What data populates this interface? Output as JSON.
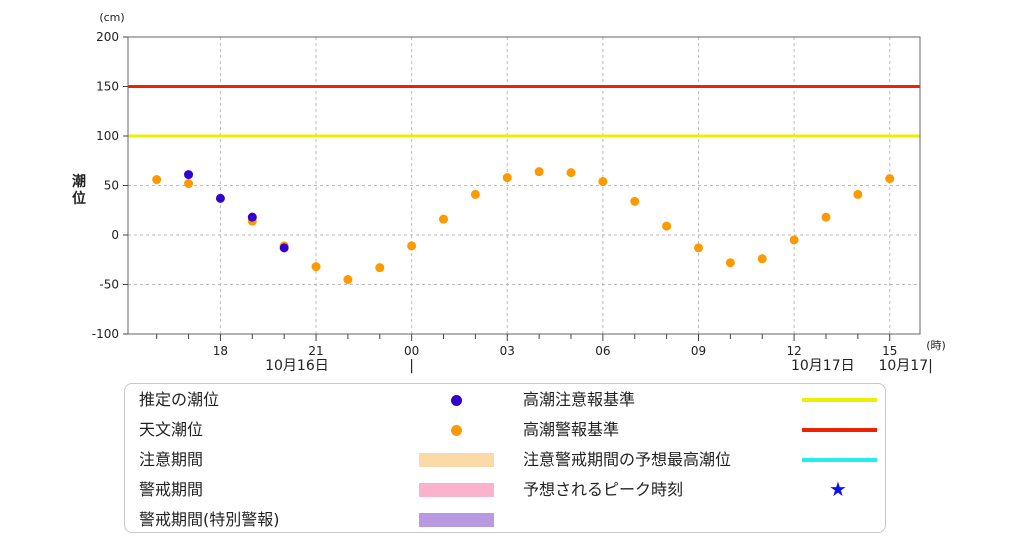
{
  "chart_data": {
    "type": "scatter",
    "ylabel": "潮位",
    "y_unit": "(cm)",
    "x_unit": "(時)",
    "ylim": [
      -100,
      200
    ],
    "y_ticks": [
      -100,
      -50,
      0,
      50,
      100,
      150,
      200
    ],
    "x_ticks": [
      {
        "h": 18,
        "label": "18"
      },
      {
        "h": 21,
        "label": "21"
      },
      {
        "h": 24,
        "label": "00"
      },
      {
        "h": 27,
        "label": "03"
      },
      {
        "h": 30,
        "label": "06"
      },
      {
        "h": 33,
        "label": "09"
      },
      {
        "h": 36,
        "label": "12"
      },
      {
        "h": 39,
        "label": "15"
      }
    ],
    "date_labels": [
      {
        "h": 20.4,
        "label": "10月16日"
      },
      {
        "h": 36.9,
        "label": "10月17日"
      },
      {
        "h": 39.5,
        "label": "10月17|"
      }
    ],
    "midnight_marker": "|",
    "grid": true,
    "reference_lines": [
      {
        "name": "高潮警報基準",
        "value": 150,
        "color": "#ee2200"
      },
      {
        "name": "高潮注意報基準",
        "value": 100,
        "color": "#eeee00"
      }
    ],
    "series": [
      {
        "name": "天文潮位",
        "color": "#ff9900",
        "points": [
          {
            "h": 16,
            "v": 56
          },
          {
            "h": 17,
            "v": 52
          },
          {
            "h": 19,
            "v": 14
          },
          {
            "h": 20,
            "v": -11
          },
          {
            "h": 21,
            "v": -32
          },
          {
            "h": 22,
            "v": -45
          },
          {
            "h": 23,
            "v": -33
          },
          {
            "h": 24,
            "v": -11
          },
          {
            "h": 25,
            "v": 16
          },
          {
            "h": 26,
            "v": 41
          },
          {
            "h": 27,
            "v": 58
          },
          {
            "h": 28,
            "v": 64
          },
          {
            "h": 29,
            "v": 63
          },
          {
            "h": 30,
            "v": 54
          },
          {
            "h": 31,
            "v": 34
          },
          {
            "h": 32,
            "v": 9
          },
          {
            "h": 33,
            "v": -13
          },
          {
            "h": 34,
            "v": -28
          },
          {
            "h": 35,
            "v": -24
          },
          {
            "h": 36,
            "v": -5
          },
          {
            "h": 37,
            "v": 18
          },
          {
            "h": 38,
            "v": 41
          },
          {
            "h": 39,
            "v": 57
          }
        ]
      },
      {
        "name": "推定の潮位",
        "color": "#3300cc",
        "points": [
          {
            "h": 17,
            "v": 61
          },
          {
            "h": 18,
            "v": 37
          },
          {
            "h": 19,
            "v": 18
          },
          {
            "h": 20,
            "v": -13
          }
        ]
      }
    ],
    "legend": {
      "placement": "bottom",
      "items": [
        {
          "label": "推定の潮位",
          "swatch": "dot",
          "color": "#3300cc"
        },
        {
          "label": "天文潮位",
          "swatch": "dot",
          "color": "#ff9900"
        },
        {
          "label": "注意期間",
          "swatch": "bar",
          "color": "#fcd9a8"
        },
        {
          "label": "警戒期間",
          "swatch": "bar",
          "color": "#f9b3cc"
        },
        {
          "label": "警戒期間(特別警報)",
          "swatch": "bar",
          "color": "#b899e2"
        },
        {
          "label": "高潮注意報基準",
          "swatch": "line",
          "color": "#eeee00"
        },
        {
          "label": "高潮警報基準",
          "swatch": "line",
          "color": "#ee2200"
        },
        {
          "label": "注意警戒期間の予想最高潮位",
          "swatch": "line",
          "color": "#22eeee"
        },
        {
          "label": "予想されるピーク時刻",
          "swatch": "star",
          "color": "#1111ee"
        }
      ]
    }
  }
}
